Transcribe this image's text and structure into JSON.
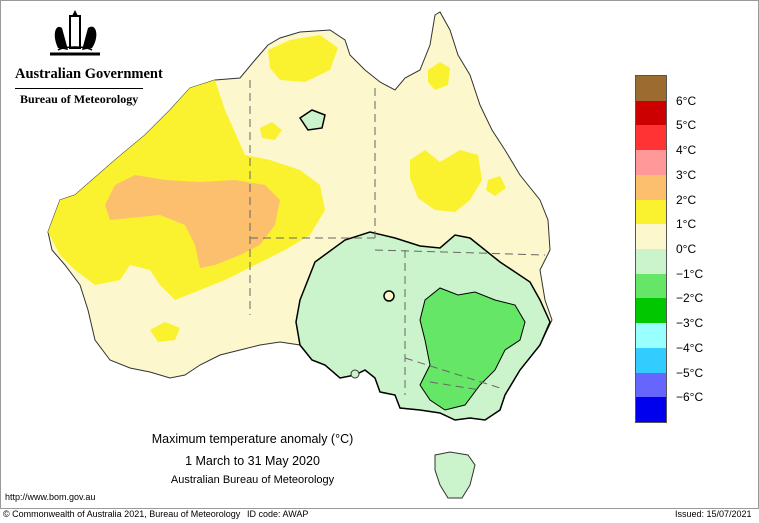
{
  "header": {
    "government": "Australian Government",
    "agency": "Bureau of Meteorology"
  },
  "caption": {
    "title": "Maximum temperature anomaly (°C)",
    "period": "1 March to 31 May 2020",
    "source": "Australian Bureau of Meteorology"
  },
  "legend": {
    "items": [
      {
        "label": "6°C",
        "color": "#9c6b30"
      },
      {
        "label": "5°C",
        "color": "#cc0000"
      },
      {
        "label": "4°C",
        "color": "#ff3333"
      },
      {
        "label": "3°C",
        "color": "#ff9999"
      },
      {
        "label": "2°C",
        "color": "#fbbf6e"
      },
      {
        "label": "1°C",
        "color": "#fbf22f"
      },
      {
        "label": "0°C",
        "color": "#fcf7cc"
      },
      {
        "label": "−1°C",
        "color": "#ccf4cc"
      },
      {
        "label": "−2°C",
        "color": "#66e666"
      },
      {
        "label": "−3°C",
        "color": "#00c700"
      },
      {
        "label": "−4°C",
        "color": "#99ffff"
      },
      {
        "label": "−5°C",
        "color": "#33ccff"
      },
      {
        "label": "−6°C",
        "color": "#6666ff"
      },
      {
        "label": "",
        "color": "#0000ee"
      }
    ]
  },
  "map": {
    "legend_range_c": [
      -6,
      6
    ],
    "colors": {
      "warm2": "#fbbf6e",
      "warm1": "#fbf22f",
      "neutral": "#fcf7cc",
      "cool1": "#ccf4cc",
      "cool2": "#66e666"
    }
  },
  "footer": {
    "url": "http://www.bom.gov.au",
    "copyright": "© Commonwealth of Australia 2021, Bureau of Meteorology",
    "id_code": "ID code: AWAP",
    "issued": "Issued: 15/07/2021"
  }
}
